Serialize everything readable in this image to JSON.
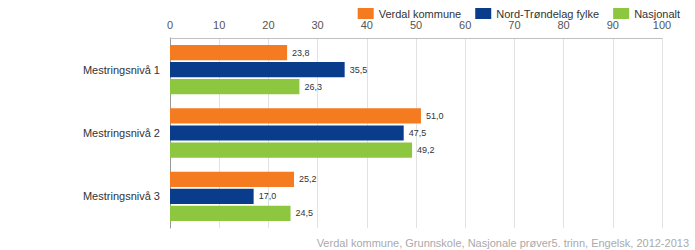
{
  "chart_data": {
    "type": "bar",
    "orientation": "horizontal",
    "categories": [
      "Mestringsnivå 1",
      "Mestringsnivå 2",
      "Mestringsnivå 3"
    ],
    "series": [
      {
        "name": "Verdal kommune",
        "color": "#f47b20",
        "values": [
          23.8,
          51.0,
          25.2
        ],
        "value_labels": [
          "23,8",
          "51,0",
          "25,2"
        ]
      },
      {
        "name": "Nord-Trøndelag fylke",
        "color": "#0a3c8c",
        "values": [
          35.5,
          47.5,
          17.0
        ],
        "value_labels": [
          "35,5",
          "47,5",
          "17,0"
        ]
      },
      {
        "name": "Nasjonalt",
        "color": "#8dc63f",
        "values": [
          26.3,
          49.2,
          24.5
        ],
        "value_labels": [
          "26,3",
          "49,2",
          "24,5"
        ]
      }
    ],
    "xlim": [
      0,
      100
    ],
    "xticks": [
      0,
      10,
      20,
      30,
      40,
      50,
      60,
      70,
      80,
      90,
      100
    ],
    "grid": true,
    "legend": "top-right",
    "data_labels": true,
    "annotations": [
      "Verdal kommune, Grunnskole, Nasjonale prøver5. trinn, Engelsk, 2012-2013"
    ]
  }
}
